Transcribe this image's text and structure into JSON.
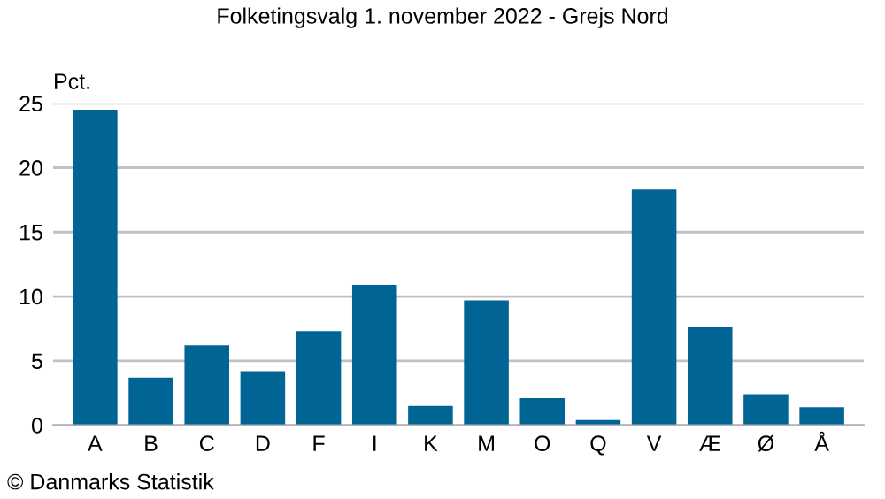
{
  "chart_data": {
    "type": "bar",
    "title": "Folketingsvalg 1. november 2022 - Grejs Nord",
    "ylabel": "Pct.",
    "categories": [
      "A",
      "B",
      "C",
      "D",
      "F",
      "I",
      "K",
      "M",
      "O",
      "Q",
      "V",
      "Æ",
      "Ø",
      "Å"
    ],
    "values": [
      24.5,
      3.7,
      6.2,
      4.2,
      7.3,
      10.9,
      1.5,
      9.7,
      2.1,
      0.4,
      18.3,
      7.6,
      2.4,
      1.4
    ],
    "color": "#006495",
    "ylim": [
      0,
      25
    ],
    "yticks": [
      0,
      5,
      10,
      15,
      20,
      25
    ],
    "grid": "y",
    "annotations": [
      "© Danmarks Statistik"
    ]
  }
}
